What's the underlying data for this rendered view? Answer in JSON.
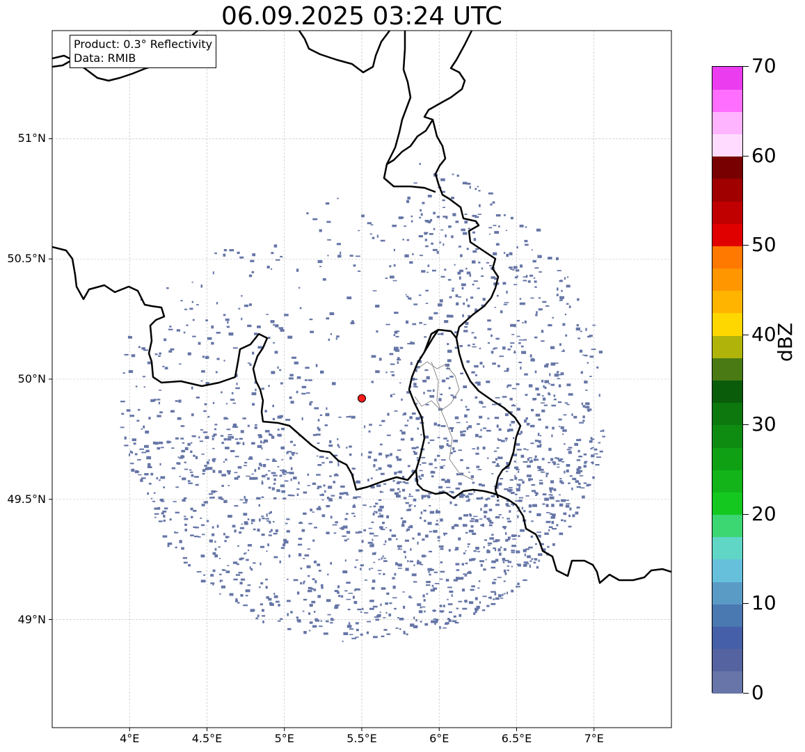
{
  "title": "06.09.2025 03:24 UTC",
  "info": {
    "product": "Product: 0.3° Reflectivity",
    "data": "Data: RMIB"
  },
  "map": {
    "lon_range": [
      3.5,
      7.5
    ],
    "lat_range": [
      48.55,
      51.45
    ],
    "lat_ticks": [
      {
        "value": 49.0,
        "label": "49°N"
      },
      {
        "value": 49.5,
        "label": "49.5°N"
      },
      {
        "value": 50.0,
        "label": "50°N"
      },
      {
        "value": 50.5,
        "label": "50.5°N"
      },
      {
        "value": 51.0,
        "label": "51°N"
      }
    ],
    "lon_ticks": [
      {
        "value": 4.0,
        "label": "4°E"
      },
      {
        "value": 4.5,
        "label": "4.5°E"
      },
      {
        "value": 5.0,
        "label": "5°E"
      },
      {
        "value": 5.5,
        "label": "5.5°E"
      },
      {
        "value": 6.0,
        "label": "6°E"
      },
      {
        "value": 6.5,
        "label": "6.5°E"
      },
      {
        "value": 7.0,
        "label": "7°E"
      }
    ],
    "radar_site": {
      "lon": 5.5,
      "lat": 49.92
    },
    "echo_color": "#6575a6",
    "radar_marker_color": "#ff1a1a"
  },
  "colorbar": {
    "label": "dBZ",
    "min": 0,
    "max": 70,
    "ticks": [
      {
        "value": 0,
        "label": "0"
      },
      {
        "value": 10,
        "label": "10"
      },
      {
        "value": 20,
        "label": "20"
      },
      {
        "value": 30,
        "label": "30"
      },
      {
        "value": 40,
        "label": "40"
      },
      {
        "value": 50,
        "label": "50"
      },
      {
        "value": 60,
        "label": "60"
      },
      {
        "value": 70,
        "label": "70"
      }
    ],
    "colors": [
      "#6775a8",
      "#5564a0",
      "#4560a8",
      "#4a78b0",
      "#5a9bc6",
      "#66c0dc",
      "#5fd6c6",
      "#3cd672",
      "#14c820",
      "#12b41a",
      "#10a014",
      "#0e8c12",
      "#0c780e",
      "#0a5c0a",
      "#4a7a14",
      "#b0b40a",
      "#ffd700",
      "#ffb400",
      "#ff9600",
      "#ff7800",
      "#e10000",
      "#c00000",
      "#a00000",
      "#780000",
      "#ffdcff",
      "#ffb4ff",
      "#ff6eff",
      "#eb3cf0"
    ]
  }
}
